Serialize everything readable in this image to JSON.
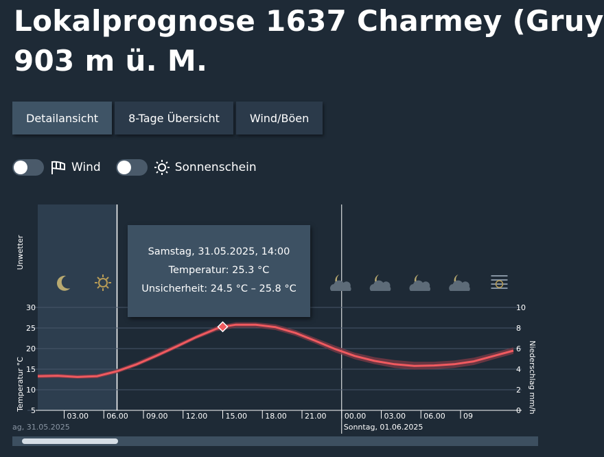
{
  "header": {
    "title_line1": "Lokalprognose 1637 Charmey (Gruy",
    "title_line2": "903 m ü. M."
  },
  "tabs": [
    {
      "label": "Detailansicht",
      "active": true
    },
    {
      "label": "8-Tage Übersicht",
      "active": false
    },
    {
      "label": "Wind/Böen",
      "active": false
    }
  ],
  "toggles": {
    "wind": {
      "label": "Wind",
      "icon": "windsock-icon",
      "on": false
    },
    "sun": {
      "label": "Sonnenschein",
      "icon": "sun-icon",
      "on": false
    }
  },
  "tooltip": {
    "line1": "Samstag, 31.05.2025, 14:00",
    "line2": "Temperatur: 25.3 °C",
    "line3": "Unsicherheit: 24.5 °C – 25.8 °C"
  },
  "chart_data": {
    "type": "line",
    "ylabel": "Temperatur °C",
    "y2label": "Niederschlag mm/h",
    "unwetter_label": "Unwetter",
    "ylim": [
      5,
      30
    ],
    "y_ticks": [
      5,
      10,
      15,
      20,
      25,
      30
    ],
    "y2lim": [
      0,
      10
    ],
    "y2_ticks": [
      0,
      2,
      4,
      6,
      8,
      10
    ],
    "x_ticks": [
      "03.00",
      "06.00",
      "09.00",
      "12.00",
      "15.00",
      "18.00",
      "21.00",
      "00.00",
      "03.00",
      "06.00",
      "09"
    ],
    "date_labels": [
      "ag, 31.05.2025",
      "Sonntag, 01.06.2025"
    ],
    "grid": true,
    "series": [
      {
        "values": [
          [
            0,
            13.3
          ],
          [
            1.5,
            13.4
          ],
          [
            3,
            13.1
          ],
          [
            4.5,
            13.3
          ],
          [
            6,
            14.5
          ],
          [
            7.5,
            16.2
          ],
          [
            9,
            18.3
          ],
          [
            10.5,
            20.5
          ],
          [
            12,
            22.8
          ],
          [
            13.5,
            24.8
          ],
          [
            14,
            25.3
          ],
          [
            15,
            25.8
          ],
          [
            16.5,
            25.8
          ],
          [
            18,
            25.2
          ],
          [
            19.5,
            23.8
          ],
          [
            21,
            21.9
          ],
          [
            22.5,
            19.9
          ],
          [
            24,
            18.2
          ],
          [
            25.5,
            17.0
          ],
          [
            27,
            16.2
          ],
          [
            28.5,
            15.8
          ],
          [
            30,
            15.9
          ],
          [
            31.5,
            16.2
          ],
          [
            33,
            16.9
          ],
          [
            34.5,
            18.2
          ],
          [
            36,
            19.5
          ]
        ],
        "uncertainty_low": [
          12.8,
          12.9,
          12.7,
          12.8,
          14.0,
          15.7,
          17.8,
          20.0,
          22.3,
          24.2,
          24.5,
          25.1,
          25.1,
          24.5,
          23.1,
          21.2,
          19.1,
          17.4,
          16.2,
          15.3,
          14.9,
          15.0,
          15.3,
          16.0,
          17.4,
          18.7
        ],
        "uncertainty_high": [
          13.8,
          13.9,
          13.6,
          13.8,
          15.0,
          16.8,
          18.9,
          21.1,
          23.3,
          25.4,
          25.8,
          26.4,
          26.4,
          25.9,
          24.5,
          22.6,
          20.7,
          19.0,
          17.9,
          17.2,
          16.8,
          16.8,
          17.1,
          17.8,
          19.0,
          20.3
        ]
      }
    ],
    "highlight_point": {
      "x": 14,
      "y": 25.3
    },
    "night_shading": true,
    "weather_icons": [
      "moon-icon",
      "sun-icon",
      "sun-icon",
      "sun-icon",
      "sun-icon",
      "sun-icon",
      "sun-icon",
      "moon-cloud-icon",
      "moon-cloud-icon",
      "moon-cloud-icon",
      "moon-cloud-icon",
      "fog-sun-icon"
    ],
    "colors": {
      "line": "#f05a5f",
      "band": "#7a3a46",
      "marker": "#f05a5f",
      "grid": "#48576a",
      "night": "#2d3e4f"
    }
  }
}
